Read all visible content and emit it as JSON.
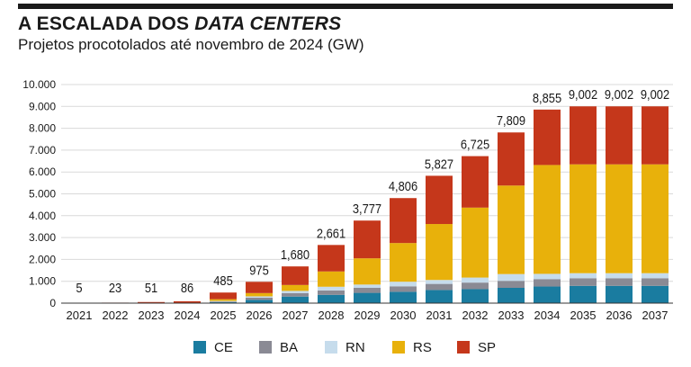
{
  "header": {
    "title_main": "A ESCALADA DOS ",
    "title_em": "DATA CENTERS",
    "subtitle": "Projetos procotolados até novembro de 2024 (GW)"
  },
  "colors": {
    "CE": "#1a7ca0",
    "BA": "#8a8a94",
    "RN": "#c6dcec",
    "RS": "#e8b10b",
    "SP": "#c5371b",
    "grid": "#d9d9d9",
    "axis": "#333333",
    "text": "#1a1a1a"
  },
  "chart_data": {
    "type": "bar",
    "stacked": true,
    "categories": [
      "2021",
      "2022",
      "2023",
      "2024",
      "2025",
      "2026",
      "2027",
      "2028",
      "2029",
      "2030",
      "2031",
      "2032",
      "2033",
      "2034",
      "2035",
      "2036",
      "2037"
    ],
    "series": [
      {
        "name": "CE",
        "values": [
          0,
          0,
          0,
          0,
          40,
          150,
          300,
          380,
          470,
          520,
          600,
          640,
          700,
          760,
          790,
          790,
          790
        ]
      },
      {
        "name": "BA",
        "values": [
          0,
          0,
          0,
          0,
          30,
          100,
          160,
          200,
          230,
          250,
          280,
          300,
          320,
          340,
          350,
          350,
          350
        ]
      },
      {
        "name": "RN",
        "values": [
          0,
          0,
          0,
          0,
          30,
          60,
          100,
          170,
          150,
          210,
          180,
          230,
          310,
          240,
          230,
          230,
          230
        ]
      },
      {
        "name": "RS",
        "values": [
          0,
          0,
          0,
          0,
          80,
          150,
          270,
          700,
          1200,
          1770,
          2560,
          3200,
          4050,
          4980,
          4980,
          4980,
          4980
        ]
      },
      {
        "name": "SP",
        "values": [
          5,
          23,
          51,
          86,
          305,
          515,
          850,
          1211,
          1727,
          2056,
          2207,
          2355,
          2429,
          2535,
          2652,
          2652,
          2652
        ]
      }
    ],
    "totals": [
      5,
      23,
      51,
      86,
      485,
      975,
      1680,
      2661,
      3777,
      4806,
      5827,
      6725,
      7809,
      8855,
      9002,
      9002,
      9002
    ],
    "total_labels": [
      "5",
      "23",
      "51",
      "86",
      "485",
      "975",
      "1,680",
      "2,661",
      "3,777",
      "4,806",
      "5,827",
      "6,725",
      "7,809",
      "8,855",
      "9,002",
      "9,002",
      "9,002"
    ],
    "ylim": [
      0,
      10000
    ],
    "yticks": [
      0,
      1000,
      2000,
      3000,
      4000,
      5000,
      6000,
      7000,
      8000,
      9000,
      10000
    ],
    "ytick_labels": [
      "0",
      "1.000",
      "2.000",
      "3.000",
      "4.000",
      "5.000",
      "6.000",
      "7.000",
      "8.000",
      "9.000",
      "10.000"
    ],
    "xlabel": "",
    "ylabel": "",
    "grid": true,
    "legend": [
      "CE",
      "BA",
      "RN",
      "RS",
      "SP"
    ],
    "legend_position": "bottom"
  }
}
